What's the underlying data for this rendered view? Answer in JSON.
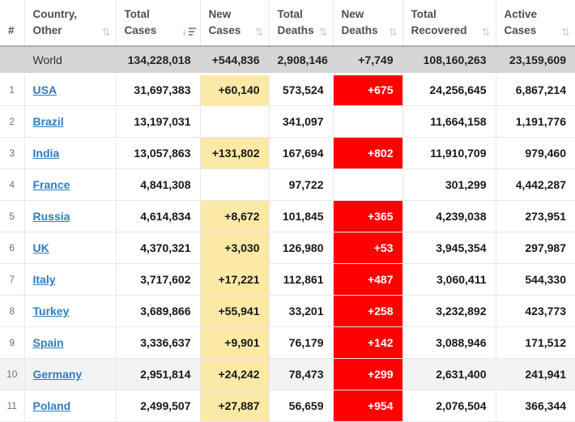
{
  "colors": {
    "accent_red": "#ff0000",
    "highlight_yellow": "#fce9a6",
    "link_blue": "#2e7dbf",
    "world_row_bg": "#d5d5d5",
    "shaded_row_bg": "#f3f3f3",
    "border_gray": "#e8e8e8"
  },
  "icons": {
    "sort_both": "⇅",
    "sort_desc_arrow": "↓"
  },
  "table": {
    "headers": [
      {
        "key": "rank",
        "lines": [
          "#"
        ],
        "sort": "none"
      },
      {
        "key": "country",
        "lines": [
          "Country,",
          "Other"
        ],
        "sort": "both"
      },
      {
        "key": "total-cases",
        "lines": [
          "Total",
          "Cases"
        ],
        "sort": "desc"
      },
      {
        "key": "new-cases",
        "lines": [
          "New",
          "Cases"
        ],
        "sort": "both"
      },
      {
        "key": "total-deaths",
        "lines": [
          "Total",
          "Deaths"
        ],
        "sort": "both"
      },
      {
        "key": "new-deaths",
        "lines": [
          "New",
          "Deaths"
        ],
        "sort": "both"
      },
      {
        "key": "total-recovered",
        "lines": [
          "Total",
          "Recovered"
        ],
        "sort": "both"
      },
      {
        "key": "active-cases",
        "lines": [
          "Active",
          "Cases"
        ],
        "sort": "both"
      }
    ],
    "world": {
      "country": "World",
      "total_cases": "134,228,018",
      "new_cases": "+544,836",
      "total_deaths": "2,908,146",
      "new_deaths": "+7,749",
      "total_recovered": "108,160,263",
      "active_cases": "23,159,609"
    },
    "rows": [
      {
        "rank": "1",
        "country": "USA",
        "total_cases": "31,697,383",
        "new_cases": "+60,140",
        "total_deaths": "573,524",
        "new_deaths": "+675",
        "total_recovered": "24,256,645",
        "active_cases": "6,867,214",
        "shaded": false
      },
      {
        "rank": "2",
        "country": "Brazil",
        "total_cases": "13,197,031",
        "new_cases": "",
        "total_deaths": "341,097",
        "new_deaths": "",
        "total_recovered": "11,664,158",
        "active_cases": "1,191,776",
        "shaded": false
      },
      {
        "rank": "3",
        "country": "India",
        "total_cases": "13,057,863",
        "new_cases": "+131,802",
        "total_deaths": "167,694",
        "new_deaths": "+802",
        "total_recovered": "11,910,709",
        "active_cases": "979,460",
        "shaded": false
      },
      {
        "rank": "4",
        "country": "France",
        "total_cases": "4,841,308",
        "new_cases": "",
        "total_deaths": "97,722",
        "new_deaths": "",
        "total_recovered": "301,299",
        "active_cases": "4,442,287",
        "shaded": false
      },
      {
        "rank": "5",
        "country": "Russia",
        "total_cases": "4,614,834",
        "new_cases": "+8,672",
        "total_deaths": "101,845",
        "new_deaths": "+365",
        "total_recovered": "4,239,038",
        "active_cases": "273,951",
        "shaded": false
      },
      {
        "rank": "6",
        "country": "UK",
        "total_cases": "4,370,321",
        "new_cases": "+3,030",
        "total_deaths": "126,980",
        "new_deaths": "+53",
        "total_recovered": "3,945,354",
        "active_cases": "297,987",
        "shaded": false
      },
      {
        "rank": "7",
        "country": "Italy",
        "total_cases": "3,717,602",
        "new_cases": "+17,221",
        "total_deaths": "112,861",
        "new_deaths": "+487",
        "total_recovered": "3,060,411",
        "active_cases": "544,330",
        "shaded": false
      },
      {
        "rank": "8",
        "country": "Turkey",
        "total_cases": "3,689,866",
        "new_cases": "+55,941",
        "total_deaths": "33,201",
        "new_deaths": "+258",
        "total_recovered": "3,232,892",
        "active_cases": "423,773",
        "shaded": false
      },
      {
        "rank": "9",
        "country": "Spain",
        "total_cases": "3,336,637",
        "new_cases": "+9,901",
        "total_deaths": "76,179",
        "new_deaths": "+142",
        "total_recovered": "3,088,946",
        "active_cases": "171,512",
        "shaded": false
      },
      {
        "rank": "10",
        "country": "Germany",
        "total_cases": "2,951,814",
        "new_cases": "+24,242",
        "total_deaths": "78,473",
        "new_deaths": "+299",
        "total_recovered": "2,631,400",
        "active_cases": "241,941",
        "shaded": true
      },
      {
        "rank": "11",
        "country": "Poland",
        "total_cases": "2,499,507",
        "new_cases": "+27,887",
        "total_deaths": "56,659",
        "new_deaths": "+954",
        "total_recovered": "2,076,504",
        "active_cases": "366,344",
        "shaded": false
      }
    ]
  }
}
